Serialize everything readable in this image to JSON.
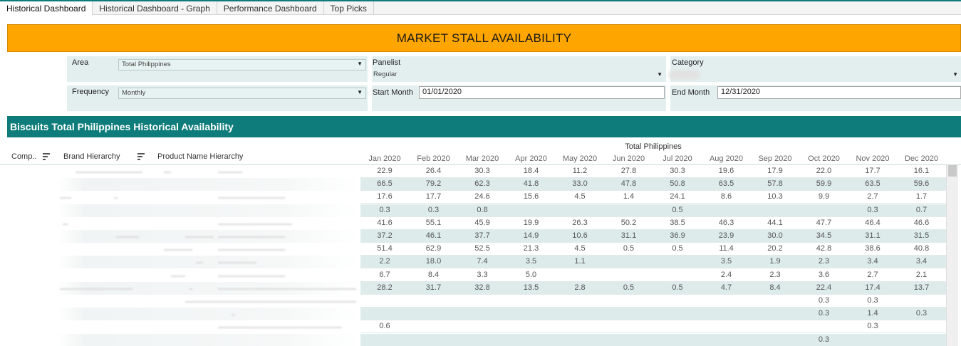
{
  "tabs": [
    "Historical Dashboard",
    "Historical Dashboard - Graph",
    "Performance Dashboard",
    "Top Picks"
  ],
  "banner_title": "MARKET STALL AVAILABILITY",
  "filters": {
    "area_label": "Area",
    "area_value": "Total Philippines",
    "panelist_label": "Panelist",
    "panelist_value": "Regular",
    "category_label": "Category",
    "category_value": "",
    "frequency_label": "Frequency",
    "frequency_value": "Monthly",
    "start_label": "Start Month",
    "start_value": "01/01/2020",
    "end_label": "End Month",
    "end_value": "12/31/2020"
  },
  "section_title": "Biscuits Total Philippines Historical Availability",
  "table": {
    "columns": [
      "Comp..",
      "Brand Hierarchy",
      "Product Name Hierarchy"
    ],
    "group_header": "Total Philippines",
    "months": [
      "Jan 2020",
      "Feb 2020",
      "Mar 2020",
      "Apr 2020",
      "May 2020",
      "Jun 2020",
      "Jul 2020",
      "Aug 2020",
      "Sep 2020",
      "Oct 2020",
      "Nov 2020",
      "Dec 2020"
    ],
    "rows": [
      [
        "22.9",
        "26.4",
        "30.3",
        "18.4",
        "11.2",
        "27.8",
        "30.3",
        "19.6",
        "17.9",
        "22.0",
        "17.7",
        "16.1"
      ],
      [
        "66.5",
        "79.2",
        "62.3",
        "41.8",
        "33.0",
        "47.8",
        "50.8",
        "63.5",
        "57.8",
        "59.9",
        "63.5",
        "59.6"
      ],
      [
        "17.6",
        "17.7",
        "24.6",
        "15.6",
        "4.5",
        "1.4",
        "24.1",
        "8.6",
        "10.3",
        "9.9",
        "2.7",
        "1.7"
      ],
      [
        "0.3",
        "0.3",
        "0.8",
        "",
        "",
        "",
        "0.5",
        "",
        "",
        "",
        "0.3",
        "0.7"
      ],
      [
        "41.6",
        "55.1",
        "45.9",
        "19.9",
        "26.3",
        "50.2",
        "38.5",
        "46.3",
        "44.1",
        "47.7",
        "46.4",
        "46.6"
      ],
      [
        "37.2",
        "46.1",
        "37.7",
        "14.9",
        "10.6",
        "31.1",
        "36.9",
        "23.9",
        "30.0",
        "34.5",
        "31.1",
        "31.5"
      ],
      [
        "51.4",
        "62.9",
        "52.5",
        "21.3",
        "4.5",
        "0.5",
        "0.5",
        "11.4",
        "20.2",
        "42.8",
        "38.6",
        "40.8"
      ],
      [
        "2.2",
        "18.0",
        "7.4",
        "3.5",
        "1.1",
        "",
        "",
        "3.5",
        "1.9",
        "2.3",
        "3.4",
        "3.4"
      ],
      [
        "6.7",
        "8.4",
        "3.3",
        "5.0",
        "",
        "",
        "",
        "2.4",
        "2.3",
        "3.6",
        "2.7",
        "2.1"
      ],
      [
        "28.2",
        "31.7",
        "32.8",
        "13.5",
        "2.8",
        "0.5",
        "0.5",
        "4.7",
        "8.4",
        "22.4",
        "17.4",
        "13.7"
      ],
      [
        "",
        "",
        "",
        "",
        "",
        "",
        "",
        "",
        "",
        "0.3",
        "0.3",
        ""
      ],
      [
        "",
        "",
        "",
        "",
        "",
        "",
        "",
        "",
        "",
        "0.3",
        "1.4",
        "0.3"
      ],
      [
        "0.6",
        "",
        "",
        "",
        "",
        "",
        "",
        "",
        "",
        "",
        "0.3",
        ""
      ],
      [
        "",
        "",
        "",
        "",
        "",
        "",
        "",
        "",
        "",
        "0.3",
        "",
        ""
      ]
    ]
  },
  "colors": {
    "accent": "#0e7c7b",
    "banner": "#ffa500",
    "row_alt": "#ddeceb"
  }
}
